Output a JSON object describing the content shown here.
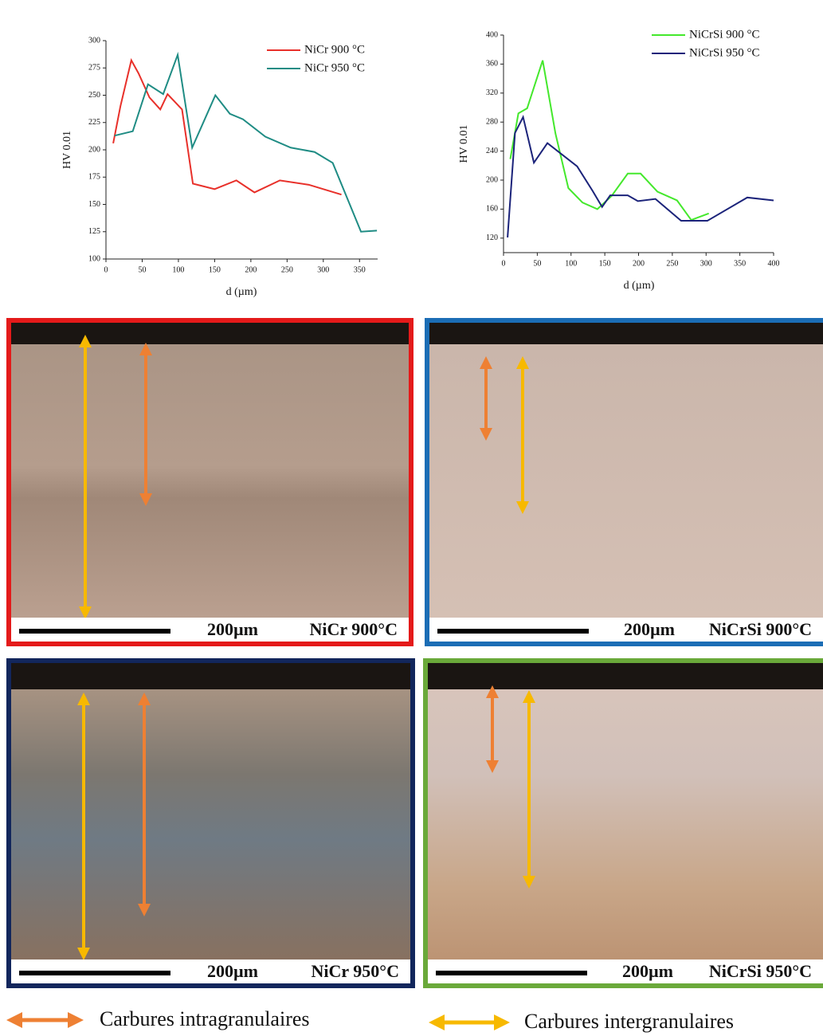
{
  "chart_data": [
    {
      "type": "line",
      "xlabel": "d (µm)",
      "ylabel": "HV 0.01",
      "xlim": [
        0,
        375
      ],
      "xticks": [
        0,
        50,
        100,
        150,
        200,
        250,
        300,
        350
      ],
      "ylim": [
        100,
        300
      ],
      "yticks": [
        100,
        125,
        150,
        175,
        200,
        225,
        250,
        275,
        300
      ],
      "legend": "upper right",
      "series": [
        {
          "name": "NiCr 900 °C",
          "color": "#e8302a",
          "x": [
            10,
            20,
            35,
            45,
            60,
            75,
            85,
            105,
            120,
            150,
            180,
            205,
            240,
            280,
            325
          ],
          "values": [
            206,
            240,
            282,
            270,
            248,
            237,
            251,
            237,
            169,
            164,
            172,
            161,
            172,
            168,
            159
          ]
        },
        {
          "name": "NiCr 950 °C",
          "color": "#1f8c84",
          "x": [
            12,
            37,
            58,
            79,
            99,
            119,
            151,
            171,
            189,
            220,
            255,
            288,
            313,
            352,
            374
          ],
          "values": [
            213,
            217,
            260,
            251,
            287,
            202,
            250,
            233,
            228,
            212,
            202,
            198,
            188,
            125,
            126
          ]
        }
      ]
    },
    {
      "type": "line",
      "xlabel": "d (µm)",
      "ylabel": "HV 0.01",
      "xlim": [
        0,
        400
      ],
      "xticks": [
        0,
        50,
        100,
        150,
        200,
        250,
        300,
        350,
        400
      ],
      "ylim": [
        100,
        400
      ],
      "yticks": [
        120,
        160,
        200,
        240,
        280,
        320,
        360,
        400
      ],
      "legend": "upper right",
      "series": [
        {
          "name": "NiCrSi 900 °C",
          "color": "#44e82c",
          "x": [
            10,
            22,
            35,
            58,
            77,
            96,
            117,
            139,
            160,
            184,
            203,
            228,
            257,
            278,
            304
          ],
          "values": [
            229,
            292,
            299,
            365,
            264,
            189,
            169,
            160,
            178,
            209,
            209,
            184,
            172,
            145,
            154
          ]
        },
        {
          "name": "NiCrSi 950 °C",
          "color": "#1b237a",
          "x": [
            6,
            17,
            29,
            45,
            65,
            109,
            132,
            146,
            158,
            184,
            199,
            225,
            263,
            302,
            361,
            400
          ],
          "values": [
            121,
            265,
            287,
            224,
            251,
            219,
            185,
            163,
            179,
            179,
            171,
            174,
            144,
            144,
            176,
            172
          ]
        }
      ]
    }
  ],
  "panels": [
    {
      "scale": "200µm",
      "label": "NiCr 900°C"
    },
    {
      "scale": "200µm",
      "label": "NiCrSi 900°C"
    },
    {
      "scale": "200µm",
      "label": "NiCr 950°C"
    },
    {
      "scale": "200µm",
      "label": "NiCrSi 950°C"
    }
  ],
  "legend": [
    "Carbures intragranulaires",
    "Carbures intergranulaires"
  ]
}
